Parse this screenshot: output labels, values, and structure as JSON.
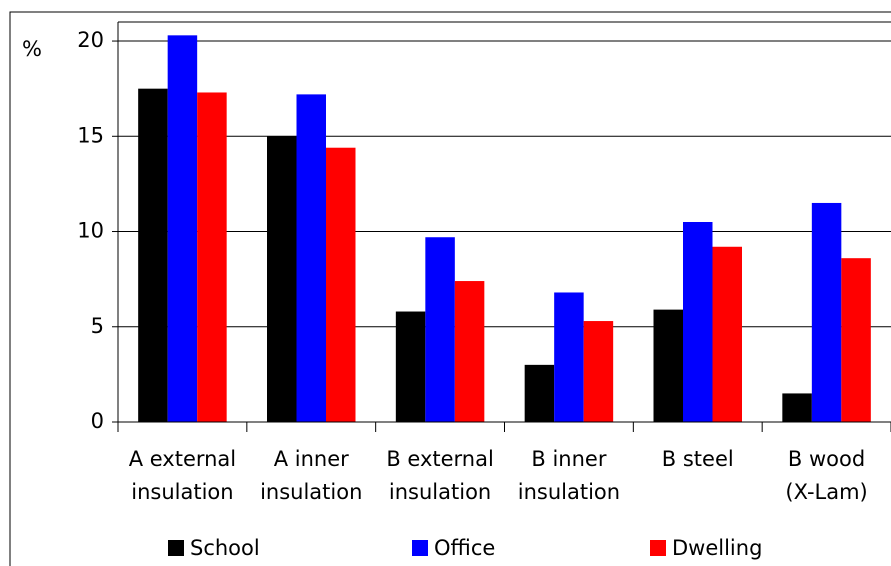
{
  "chart_data": {
    "type": "bar",
    "y_label": "%",
    "categories": [
      [
        "A external",
        "insulation"
      ],
      [
        "A inner",
        "insulation"
      ],
      [
        "B external",
        "insulation"
      ],
      [
        "B inner",
        "insulation"
      ],
      [
        "B steel"
      ],
      [
        "B wood",
        "(X-Lam)"
      ]
    ],
    "series": [
      {
        "name": "School",
        "color": "#000000",
        "values": [
          17.5,
          15.0,
          5.8,
          3.0,
          5.9,
          1.5
        ]
      },
      {
        "name": "Office",
        "color": "#0000ff",
        "values": [
          20.3,
          17.2,
          9.7,
          6.8,
          10.5,
          11.5
        ]
      },
      {
        "name": "Dwelling",
        "color": "#ff0000",
        "values": [
          17.3,
          14.4,
          7.4,
          5.3,
          9.2,
          8.6
        ]
      }
    ],
    "ylim": [
      0,
      21
    ],
    "yticks": [
      0,
      5,
      10,
      15,
      20
    ],
    "grid": true,
    "legend": "bottom"
  }
}
